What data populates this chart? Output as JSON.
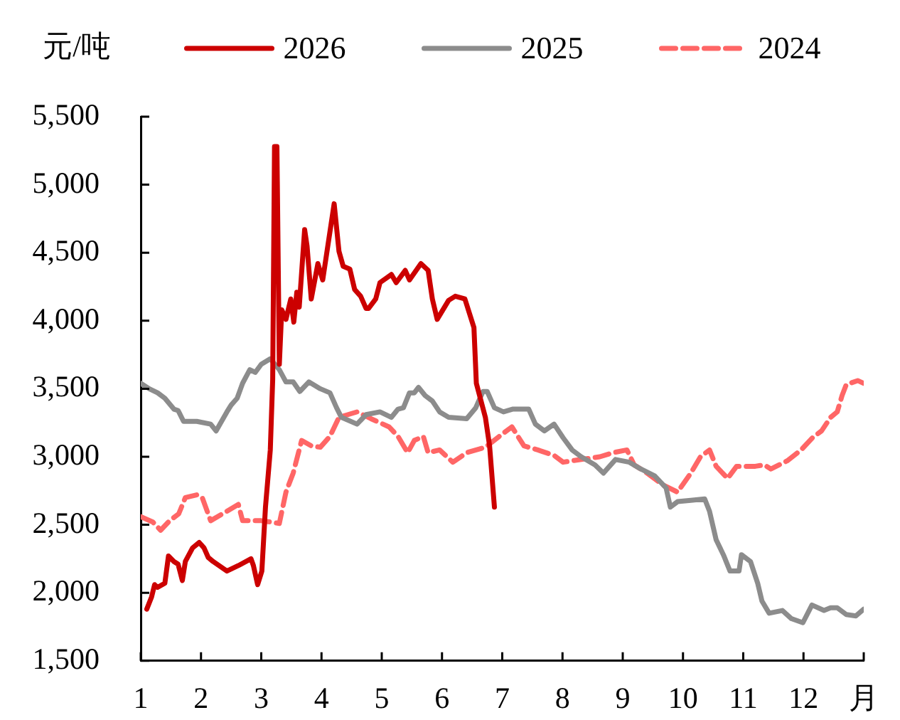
{
  "chart_data": {
    "type": "line",
    "ylabel": "元/吨",
    "legend": "top",
    "xlim": [
      1,
      13
    ],
    "xticks": [
      1,
      2,
      3,
      4,
      5,
      6,
      7,
      8,
      9,
      10,
      11,
      12,
      {
        "value": 13,
        "label": "月"
      }
    ],
    "ylim": [
      1500,
      5500
    ],
    "yticks": [
      {
        "value": 1500,
        "label": "1,500"
      },
      {
        "value": 2000,
        "label": "2,000"
      },
      {
        "value": 2500,
        "label": "2,500"
      },
      {
        "value": 3000,
        "label": "3,000"
      },
      {
        "value": 3500,
        "label": "3,500"
      },
      {
        "value": 4000,
        "label": "4,000"
      },
      {
        "value": 4500,
        "label": "4,500"
      },
      {
        "value": 5000,
        "label": "5,000"
      },
      {
        "value": 5500,
        "label": "5,500"
      }
    ],
    "series": [
      {
        "name": "2026",
        "color": "#cc0000",
        "line_style": "solid",
        "x": [
          1.1,
          1.18,
          1.23,
          1.28,
          1.4,
          1.46,
          1.55,
          1.62,
          1.69,
          1.74,
          1.86,
          1.97,
          2.05,
          2.12,
          2.2,
          2.43,
          2.62,
          2.83,
          2.87,
          2.94,
          3.01,
          3.07,
          3.15,
          3.19,
          3.22,
          3.26,
          3.3,
          3.34,
          3.41,
          3.49,
          3.54,
          3.59,
          3.63,
          3.72,
          3.76,
          3.83,
          3.94,
          4.02,
          4.21,
          4.29,
          4.36,
          4.47,
          4.55,
          4.65,
          4.74,
          4.78,
          4.9,
          4.97,
          5.16,
          5.24,
          5.39,
          5.46,
          5.65,
          5.77,
          5.84,
          5.92,
          6.11,
          6.22,
          6.38,
          6.53,
          6.57,
          6.72,
          6.79,
          6.87
        ],
        "values": [
          1880,
          1970,
          2060,
          2040,
          2070,
          2270,
          2230,
          2210,
          2090,
          2230,
          2330,
          2370,
          2330,
          2260,
          2230,
          2160,
          2200,
          2250,
          2200,
          2060,
          2160,
          2630,
          3050,
          3570,
          5280,
          5280,
          3680,
          4080,
          4010,
          4160,
          3990,
          4210,
          4100,
          4670,
          4550,
          4160,
          4420,
          4300,
          4860,
          4510,
          4400,
          4380,
          4230,
          4180,
          4090,
          4090,
          4160,
          4280,
          4340,
          4280,
          4370,
          4300,
          4420,
          4370,
          4160,
          4010,
          4150,
          4180,
          4160,
          3950,
          3540,
          3290,
          3080,
          2630
        ]
      },
      {
        "name": "2025",
        "color": "#8c8c8c",
        "line_style": "solid",
        "x": [
          1.0,
          1.14,
          1.28,
          1.4,
          1.55,
          1.62,
          1.71,
          1.93,
          2.16,
          2.25,
          2.43,
          2.5,
          2.6,
          2.69,
          2.81,
          2.9,
          3.0,
          3.15,
          3.3,
          3.41,
          3.53,
          3.64,
          3.79,
          3.98,
          4.14,
          4.25,
          4.33,
          4.59,
          4.74,
          4.97,
          5.16,
          5.27,
          5.36,
          5.46,
          5.54,
          5.61,
          5.72,
          5.84,
          5.96,
          6.11,
          6.41,
          6.56,
          6.68,
          6.75,
          6.87,
          7.02,
          7.17,
          7.44,
          7.55,
          7.7,
          7.86,
          8.01,
          8.16,
          8.31,
          8.54,
          8.68,
          8.88,
          9.11,
          9.3,
          9.53,
          9.72,
          9.79,
          9.91,
          10.13,
          10.36,
          10.44,
          10.55,
          10.67,
          10.78,
          10.93,
          10.97,
          11.12,
          11.24,
          11.31,
          11.43,
          11.65,
          11.8,
          11.99,
          12.14,
          12.34,
          12.45,
          12.56,
          12.71,
          12.87,
          13.0
        ],
        "values": [
          3540,
          3500,
          3470,
          3430,
          3350,
          3340,
          3260,
          3260,
          3240,
          3190,
          3330,
          3380,
          3430,
          3540,
          3640,
          3620,
          3680,
          3720,
          3640,
          3550,
          3550,
          3480,
          3550,
          3500,
          3470,
          3360,
          3290,
          3240,
          3310,
          3330,
          3290,
          3350,
          3360,
          3470,
          3470,
          3510,
          3450,
          3410,
          3330,
          3290,
          3280,
          3360,
          3480,
          3480,
          3360,
          3330,
          3350,
          3350,
          3240,
          3190,
          3240,
          3140,
          3050,
          3000,
          2940,
          2880,
          2980,
          2960,
          2910,
          2860,
          2770,
          2630,
          2670,
          2680,
          2690,
          2600,
          2390,
          2280,
          2160,
          2160,
          2280,
          2230,
          2070,
          1940,
          1850,
          1870,
          1810,
          1780,
          1910,
          1870,
          1890,
          1890,
          1840,
          1830,
          1880
        ]
      },
      {
        "name": "2024",
        "color": "#ff6666",
        "line_style": "dashed",
        "x": [
          1.0,
          1.1,
          1.2,
          1.33,
          1.48,
          1.63,
          1.74,
          1.93,
          2.02,
          2.16,
          2.43,
          2.62,
          2.69,
          3.0,
          3.3,
          3.41,
          3.53,
          3.67,
          3.83,
          3.98,
          4.14,
          4.29,
          4.59,
          4.82,
          5.12,
          5.27,
          5.43,
          5.54,
          5.69,
          5.77,
          5.96,
          6.18,
          6.41,
          6.72,
          6.95,
          7.16,
          7.36,
          7.59,
          7.86,
          8.01,
          8.31,
          8.62,
          8.84,
          9.07,
          9.19,
          9.37,
          9.68,
          9.91,
          10.13,
          10.29,
          10.44,
          10.55,
          10.7,
          10.74,
          10.89,
          11.2,
          11.35,
          11.46,
          11.73,
          11.96,
          12.15,
          12.3,
          12.45,
          12.56,
          12.64,
          12.71,
          12.9,
          13.0
        ],
        "values": [
          2560,
          2540,
          2520,
          2460,
          2530,
          2580,
          2700,
          2720,
          2700,
          2530,
          2600,
          2650,
          2530,
          2530,
          2510,
          2740,
          2880,
          3120,
          3080,
          3070,
          3150,
          3290,
          3330,
          3280,
          3220,
          3150,
          3030,
          3120,
          3150,
          3030,
          3050,
          2960,
          3030,
          3070,
          3150,
          3220,
          3080,
          3050,
          3010,
          2960,
          2980,
          3000,
          3030,
          3050,
          2940,
          2890,
          2790,
          2740,
          2880,
          3000,
          3050,
          2930,
          2860,
          2840,
          2930,
          2930,
          2940,
          2910,
          2970,
          3050,
          3140,
          3190,
          3290,
          3330,
          3450,
          3530,
          3560,
          3540
        ]
      }
    ]
  }
}
